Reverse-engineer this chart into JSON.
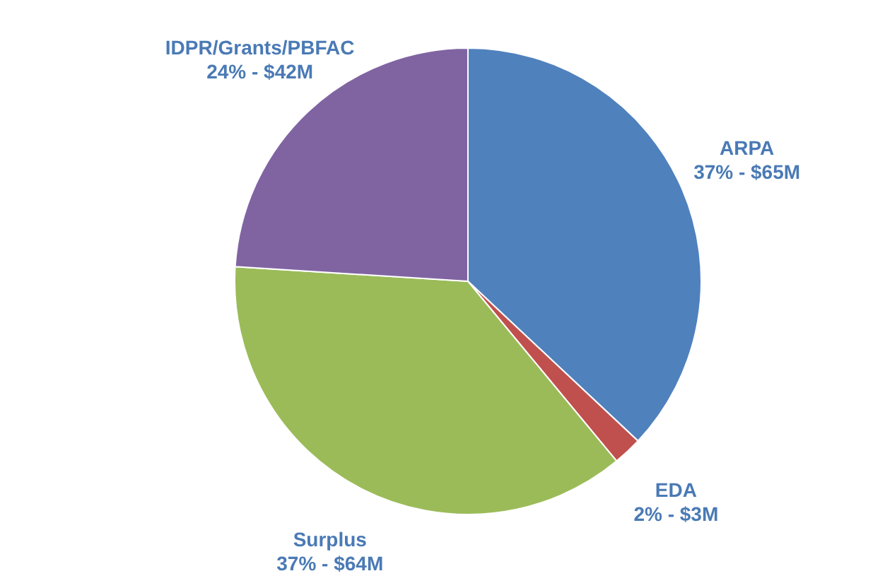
{
  "chart_data": {
    "type": "pie",
    "categories": [
      "ARPA",
      "EDA",
      "Surplus",
      "IDPR/Grants/PBFAC"
    ],
    "values": [
      37,
      2,
      37,
      24
    ],
    "value_labels": [
      "37% - $65M",
      "2% - $3M",
      "37% - $64M",
      "24% - $42M"
    ],
    "colors": [
      "#4f81bd",
      "#c0504d",
      "#9bbb59",
      "#8064a2"
    ],
    "legend": false
  }
}
